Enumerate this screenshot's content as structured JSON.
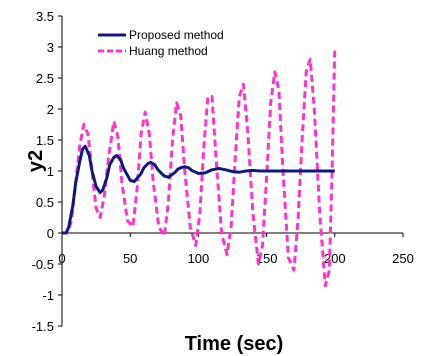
{
  "chart_data": {
    "type": "line",
    "title": "",
    "xlabel": "Time (sec)",
    "ylabel": "y2",
    "xlim": [
      0,
      250
    ],
    "ylim": [
      -1.5,
      3.5
    ],
    "x_ticks": [
      0,
      50,
      100,
      150,
      200,
      250
    ],
    "y_ticks": [
      -1.5,
      -1,
      -0.5,
      0,
      0.5,
      1,
      1.5,
      2,
      2.5,
      3,
      3.5
    ],
    "x_tick_labels": [
      "0",
      "50",
      "100",
      "150",
      "200",
      "250"
    ],
    "y_tick_labels": [
      "-1.5",
      "-1",
      "-0.5",
      "0",
      "0.5",
      "1",
      "1.5",
      "2",
      "2.5",
      "3",
      "3.5"
    ],
    "grid": false,
    "legend_position": "top-left",
    "series": [
      {
        "name": "Proposed method",
        "color": "#0d1a7a",
        "style": "solid",
        "x": [
          0,
          3,
          5,
          8,
          10,
          13,
          15,
          17,
          20,
          22,
          25,
          28,
          30,
          33,
          35,
          38,
          40,
          43,
          45,
          48,
          50,
          53,
          55,
          58,
          60,
          63,
          65,
          68,
          70,
          73,
          75,
          78,
          80,
          83,
          85,
          88,
          90,
          93,
          95,
          98,
          100,
          105,
          110,
          115,
          120,
          125,
          130,
          135,
          140,
          145,
          150,
          160,
          170,
          180,
          190,
          200
        ],
        "y": [
          0,
          0,
          0.1,
          0.45,
          0.8,
          1.15,
          1.35,
          1.4,
          1.25,
          1.0,
          0.75,
          0.65,
          0.7,
          0.9,
          1.1,
          1.22,
          1.25,
          1.18,
          1.05,
          0.93,
          0.85,
          0.83,
          0.88,
          0.96,
          1.05,
          1.12,
          1.14,
          1.1,
          1.03,
          0.96,
          0.92,
          0.9,
          0.93,
          0.98,
          1.03,
          1.06,
          1.07,
          1.05,
          1.01,
          0.98,
          0.96,
          0.97,
          1.02,
          1.04,
          1.02,
          0.99,
          0.98,
          1.0,
          1.01,
          1.0,
          1.0,
          1.0,
          1.0,
          1.0,
          1.0,
          1.0
        ]
      },
      {
        "name": "Huang method",
        "color": "#ff33cc",
        "style": "dashed",
        "x": [
          0,
          4,
          7,
          10,
          13,
          16,
          19,
          22,
          25,
          28,
          31,
          34,
          38,
          41,
          44,
          48,
          52,
          55,
          58,
          61,
          64,
          67,
          71,
          75,
          78,
          81,
          84,
          87,
          90,
          94,
          98,
          101,
          104,
          107,
          110,
          113,
          117,
          121,
          124,
          127,
          130,
          133,
          136,
          140,
          144,
          147,
          150,
          153,
          156,
          159,
          162,
          166,
          170,
          173,
          176,
          179,
          182,
          185,
          189,
          193,
          196,
          198,
          200
        ],
        "y": [
          0,
          0,
          0.2,
          0.8,
          1.4,
          1.75,
          1.6,
          1.0,
          0.4,
          0.25,
          0.6,
          1.2,
          1.8,
          1.55,
          0.8,
          0.2,
          0.1,
          0.7,
          1.6,
          1.95,
          1.6,
          0.8,
          0.1,
          -0.05,
          0.5,
          1.5,
          2.1,
          1.9,
          1.0,
          0.1,
          -0.2,
          0.3,
          1.4,
          2.2,
          2.2,
          1.2,
          0.0,
          -0.35,
          0.1,
          1.2,
          2.2,
          2.4,
          1.7,
          0.3,
          -0.5,
          -0.2,
          0.9,
          2.1,
          2.6,
          2.3,
          1.0,
          -0.4,
          -0.6,
          0.2,
          1.5,
          2.6,
          2.8,
          2.0,
          0.3,
          -0.85,
          -0.6,
          1.0,
          3.0
        ]
      }
    ]
  }
}
